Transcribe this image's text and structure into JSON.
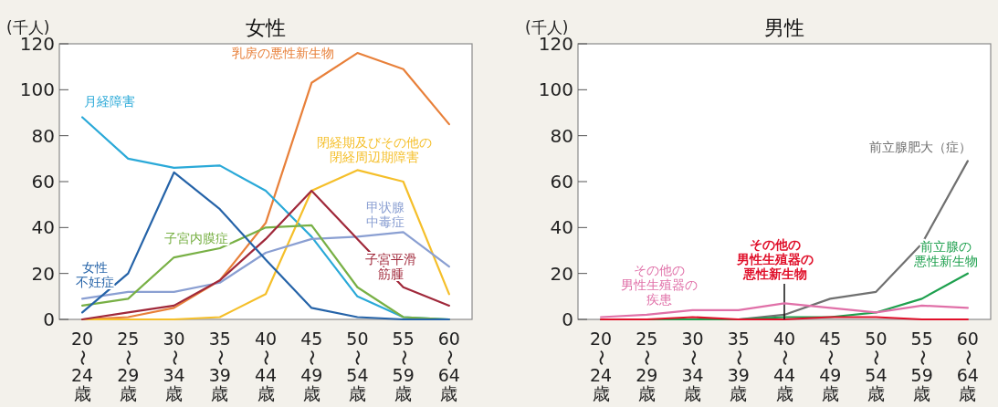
{
  "chart_data": [
    {
      "type": "line",
      "title": "女性",
      "ylabel": "(千人)",
      "categories": [
        "20〜24歳",
        "25〜29歳",
        "30〜34歳",
        "35〜39歳",
        "40〜44歳",
        "45〜49歳",
        "50〜54歳",
        "55〜59歳",
        "60〜64歳"
      ],
      "ylim": [
        0,
        120
      ],
      "yticks": [
        0,
        20,
        40,
        60,
        80,
        100,
        120
      ],
      "grid": false,
      "marker": "none",
      "line_style": "solid",
      "series": [
        {
          "name": "乳房の悪性新生物",
          "color": "#e8803a",
          "values": [
            0,
            1,
            5,
            17,
            42,
            103,
            116,
            109,
            85
          ]
        },
        {
          "name": "月経障害",
          "color": "#2aa9d8",
          "values": [
            88,
            70,
            66,
            67,
            56,
            36,
            10,
            1,
            0
          ]
        },
        {
          "name": "閉経期及びその他の閉経周辺期障害",
          "color": "#f5bf2a",
          "values": [
            0,
            0,
            0,
            1,
            11,
            56,
            65,
            60,
            11
          ]
        },
        {
          "name": "甲状腺中毒症",
          "color": "#8a9fd2",
          "values": [
            9,
            12,
            12,
            16,
            29,
            35,
            36,
            38,
            23
          ]
        },
        {
          "name": "子宮内膜症",
          "color": "#78b045",
          "values": [
            6,
            9,
            27,
            31,
            40,
            41,
            14,
            1,
            0
          ]
        },
        {
          "name": "子宮平滑筋腫",
          "color": "#a0283a",
          "values": [
            0,
            3,
            6,
            17,
            35,
            56,
            35,
            14,
            6
          ]
        },
        {
          "name": "女性不妊症",
          "color": "#2563a8",
          "values": [
            3,
            20,
            64,
            48,
            26,
            5,
            1,
            0,
            0
          ]
        }
      ]
    },
    {
      "type": "line",
      "title": "男性",
      "ylabel": "(千人)",
      "categories": [
        "20〜24歳",
        "25〜29歳",
        "30〜34歳",
        "35〜39歳",
        "40〜44歳",
        "45〜49歳",
        "50〜54歳",
        "55〜59歳",
        "60〜64歳"
      ],
      "ylim": [
        0,
        120
      ],
      "yticks": [
        0,
        20,
        40,
        60,
        80,
        100,
        120
      ],
      "grid": false,
      "marker": "none",
      "line_style": "solid",
      "series": [
        {
          "name": "前立腺肥大（症）",
          "color": "#707070",
          "values": [
            0,
            0,
            0,
            0,
            2,
            9,
            12,
            33,
            69
          ]
        },
        {
          "name": "前立腺の悪性新生物",
          "color": "#1ea04e",
          "values": [
            0,
            0,
            0,
            0,
            1,
            1,
            3,
            9,
            20
          ]
        },
        {
          "name": "その他の男性生殖器の悪性新生物",
          "color": "#e0102a",
          "values": [
            0,
            0,
            1,
            0,
            0,
            1,
            1,
            0,
            0
          ]
        },
        {
          "name": "その他の男性生殖器の疾患",
          "color": "#e070a8",
          "values": [
            1,
            2,
            4,
            4,
            7,
            5,
            3,
            6,
            5
          ]
        }
      ]
    }
  ]
}
